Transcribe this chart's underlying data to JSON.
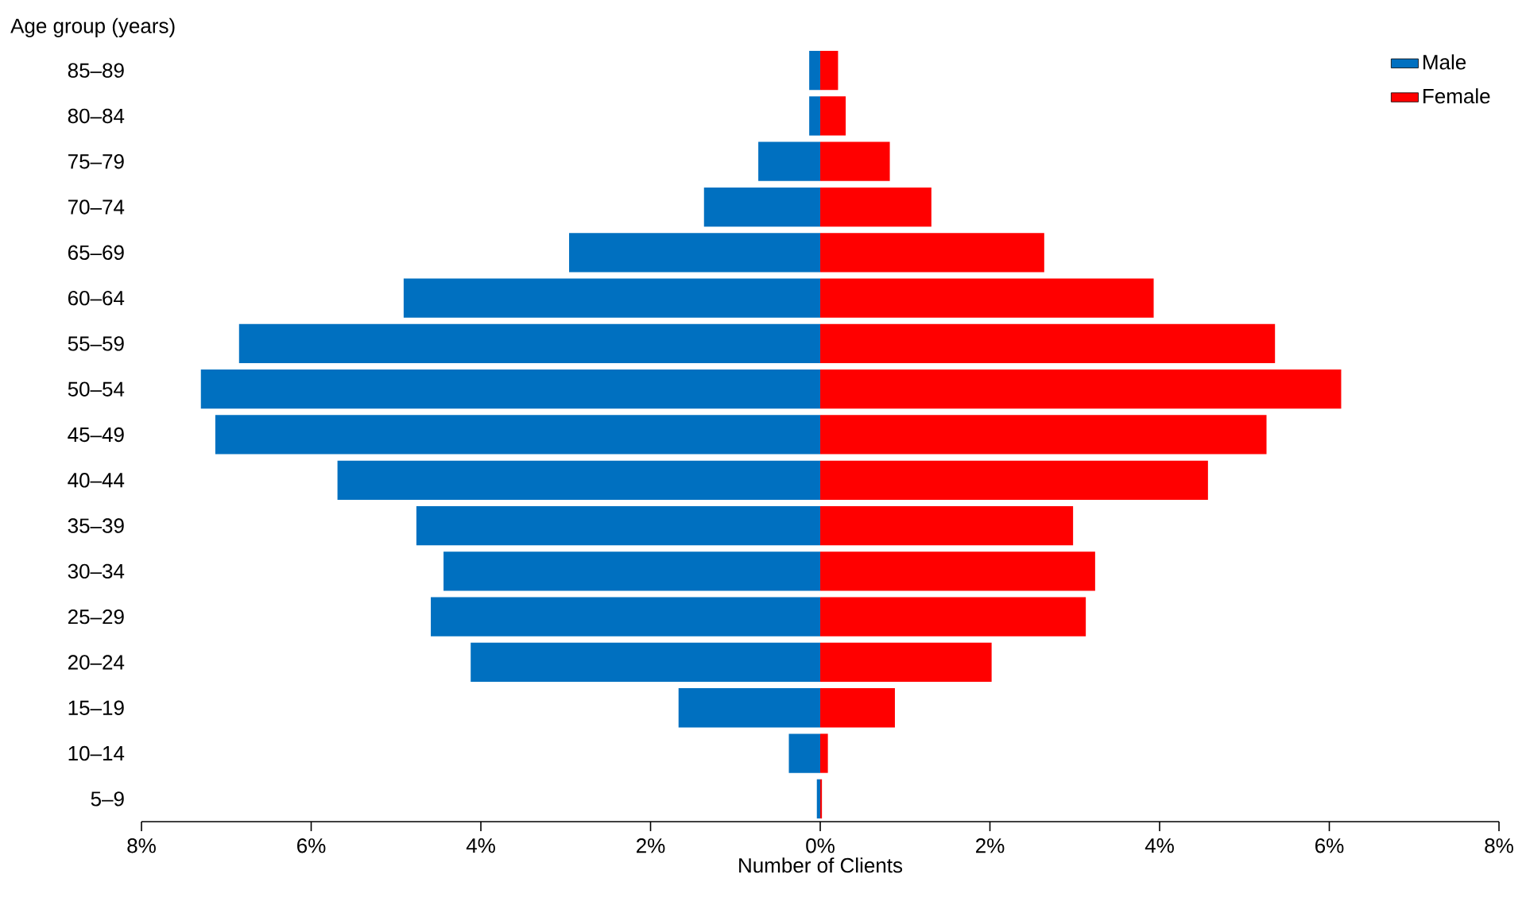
{
  "chart_data": {
    "type": "bar",
    "orientation": "horizontal",
    "ylabel": "Age group (years)",
    "xlabel": "Number of Clients",
    "categories": [
      "85–89",
      "80–84",
      "75–79",
      "70–74",
      "65–69",
      "60–64",
      "55–59",
      "50–54",
      "45–49",
      "40–44",
      "35–39",
      "30–34",
      "25–29",
      "20–24",
      "15–19",
      "10–14",
      "5–9"
    ],
    "series": [
      {
        "name": "Male",
        "color": "#0070c0",
        "values": [
          -0.13,
          -0.13,
          -0.73,
          -1.37,
          -2.96,
          -4.91,
          -6.85,
          -7.3,
          -7.13,
          -5.69,
          -4.76,
          -4.44,
          -4.59,
          -4.12,
          -1.67,
          -0.37,
          -0.04
        ]
      },
      {
        "name": "Female",
        "color": "#ff0000",
        "values": [
          0.21,
          0.3,
          0.82,
          1.31,
          2.64,
          3.93,
          5.36,
          6.14,
          5.26,
          4.57,
          2.98,
          3.24,
          3.13,
          2.02,
          0.88,
          0.09,
          0.02
        ]
      }
    ],
    "xlim": [
      -8,
      8
    ],
    "xticks": [
      {
        "value": -8,
        "label": "8%"
      },
      {
        "value": -6,
        "label": "6%"
      },
      {
        "value": -4,
        "label": "4%"
      },
      {
        "value": -2,
        "label": "2%"
      },
      {
        "value": 0,
        "label": "0%"
      },
      {
        "value": 2,
        "label": "2%"
      },
      {
        "value": 4,
        "label": "4%"
      },
      {
        "value": 6,
        "label": "6%"
      },
      {
        "value": 8,
        "label": "8%"
      }
    ],
    "legend": "top right",
    "stacked": true
  }
}
